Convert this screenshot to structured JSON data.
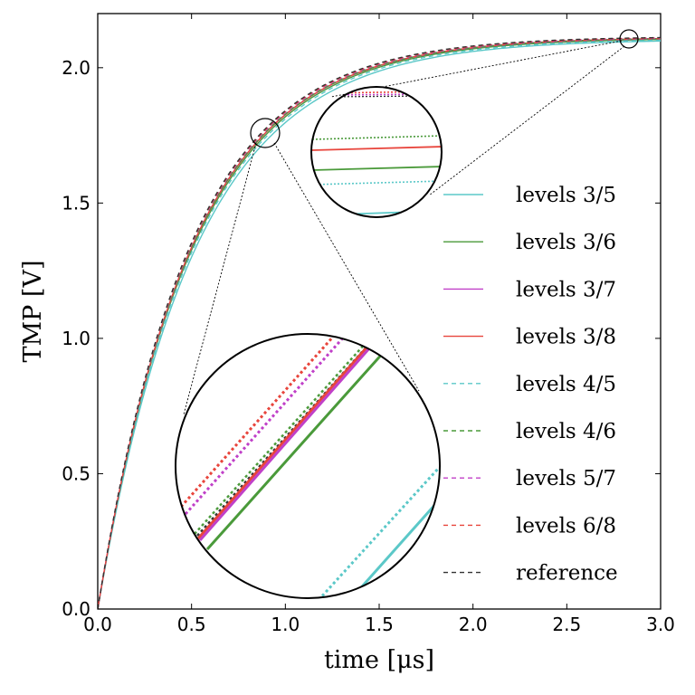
{
  "chart_data": {
    "type": "line",
    "title": "",
    "xlabel": "time [μs]",
    "ylabel": "TMP [V]",
    "xlim": [
      0.0,
      3.0
    ],
    "ylim": [
      0.0,
      2.2
    ],
    "x_ticks": [
      "0.0",
      "0.5",
      "1.0",
      "1.5",
      "2.0",
      "2.5",
      "3.0"
    ],
    "y_ticks": [
      "0.0",
      "0.5",
      "1.0",
      "1.5",
      "2.0"
    ],
    "legend_position": "right",
    "model": "y = a * (1 - exp(-t / tau))",
    "series": [
      {
        "name": "levels 3/5",
        "color": "#5bc8c8",
        "dash": "solid",
        "a": 2.105,
        "tau": 0.52
      },
      {
        "name": "levels 3/6",
        "color": "#4a9a3a",
        "dash": "solid",
        "a": 2.11,
        "tau": 0.505
      },
      {
        "name": "levels 3/7",
        "color": "#c040c8",
        "dash": "solid",
        "a": 2.112,
        "tau": 0.5
      },
      {
        "name": "levels 3/8",
        "color": "#e8453c",
        "dash": "solid",
        "a": 2.113,
        "tau": 0.5
      },
      {
        "name": "levels 4/5",
        "color": "#5bc8c8",
        "dash": "dashed",
        "a": 2.107,
        "tau": 0.51
      },
      {
        "name": "levels 4/6",
        "color": "#4a9a3a",
        "dash": "dashed",
        "a": 2.112,
        "tau": 0.498
      },
      {
        "name": "levels 5/7",
        "color": "#c040c8",
        "dash": "dashed",
        "a": 2.114,
        "tau": 0.494
      },
      {
        "name": "levels 6/8",
        "color": "#e8453c",
        "dash": "dashed",
        "a": 2.115,
        "tau": 0.492
      },
      {
        "name": "reference",
        "color": "#333333",
        "dash": "dashed",
        "a": 2.116,
        "tau": 0.49
      }
    ],
    "insets": [
      {
        "name": "zoom-mid",
        "center_time": 0.9,
        "center_value": 1.75
      },
      {
        "name": "zoom-end",
        "center_time": 2.83,
        "center_value": 2.1
      }
    ]
  }
}
